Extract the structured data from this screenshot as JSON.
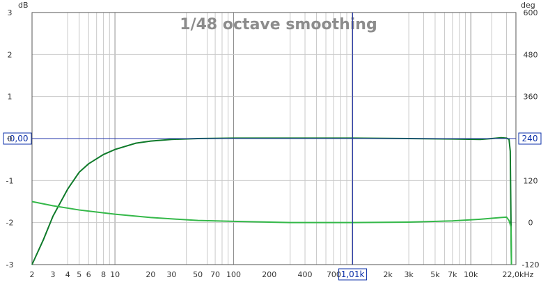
{
  "chart_data": {
    "type": "line",
    "title": "1/48 octave smoothing",
    "x_scale": "log",
    "xlim": [
      2,
      24000
    ],
    "x_tick_values": [
      2,
      3,
      4,
      5,
      6,
      8,
      10,
      20,
      30,
      50,
      70,
      100,
      200,
      400,
      700,
      1010,
      2000,
      3000,
      5000,
      7000,
      10000,
      22000
    ],
    "x_tick_labels": [
      "2",
      "3",
      "4",
      "5",
      "6",
      "8",
      "10",
      "20",
      "30",
      "50",
      "70",
      "100",
      "200",
      "400",
      "700",
      "1,01k",
      "2k",
      "3k",
      "5k",
      "7k",
      "10k",
      "22,0kHz"
    ],
    "x_minor_gridlines": [
      4,
      5,
      6,
      7,
      8,
      9,
      40,
      60,
      70,
      80,
      90,
      300,
      400,
      500,
      600,
      700,
      800,
      900,
      3000,
      4000,
      5000,
      6000,
      7000,
      8000,
      9000,
      15000,
      20000
    ],
    "x_major_gridlines": [
      10,
      100,
      1000,
      10000
    ],
    "left_axis": {
      "unit": "dB",
      "ylim": [
        -3,
        3
      ],
      "ticks": [
        3,
        2,
        1,
        0,
        -1,
        -2,
        -3
      ]
    },
    "right_axis": {
      "unit": "deg",
      "ylim": [
        -120,
        600
      ],
      "ticks": [
        600,
        480,
        360,
        240,
        120,
        0,
        -120
      ]
    },
    "cursor": {
      "x": 1010,
      "x_label": "1,01k",
      "y_left_label": "-0,00",
      "y_right_label": "240"
    },
    "series": [
      {
        "axis": "left",
        "color": "#0f7a2a",
        "points": [
          [
            2,
            -3.0
          ],
          [
            2.5,
            -2.4
          ],
          [
            3,
            -1.85
          ],
          [
            4,
            -1.2
          ],
          [
            5,
            -0.8
          ],
          [
            6,
            -0.6
          ],
          [
            8,
            -0.38
          ],
          [
            10,
            -0.26
          ],
          [
            15,
            -0.11
          ],
          [
            20,
            -0.06
          ],
          [
            30,
            -0.02
          ],
          [
            50,
            0.0
          ],
          [
            100,
            0.01
          ],
          [
            500,
            0.01
          ],
          [
            1000,
            0.01
          ],
          [
            3000,
            0.0
          ],
          [
            7000,
            -0.01
          ],
          [
            12000,
            -0.02
          ],
          [
            15000,
            0.0
          ],
          [
            18000,
            0.02
          ],
          [
            20000,
            0.01
          ],
          [
            21000,
            -0.02
          ],
          [
            21500,
            -0.3
          ],
          [
            22000,
            -3.0
          ]
        ]
      },
      {
        "axis": "left",
        "color": "#34b849",
        "points": [
          [
            2,
            -1.5
          ],
          [
            3,
            -1.6
          ],
          [
            5,
            -1.7
          ],
          [
            10,
            -1.8
          ],
          [
            20,
            -1.88
          ],
          [
            50,
            -1.95
          ],
          [
            100,
            -1.97
          ],
          [
            300,
            -2.0
          ],
          [
            1000,
            -2.0
          ],
          [
            3000,
            -1.99
          ],
          [
            7000,
            -1.96
          ],
          [
            12000,
            -1.92
          ],
          [
            18000,
            -1.88
          ],
          [
            20000,
            -1.87
          ],
          [
            21000,
            -1.95
          ],
          [
            21800,
            -2.1
          ],
          [
            22000,
            -3.0
          ]
        ]
      }
    ],
    "colors": {
      "grid": "#c8c8c8",
      "grid_major": "#8c8c8c",
      "cursor": "#2233aa",
      "cursor_box": "#0b2fa8"
    }
  }
}
